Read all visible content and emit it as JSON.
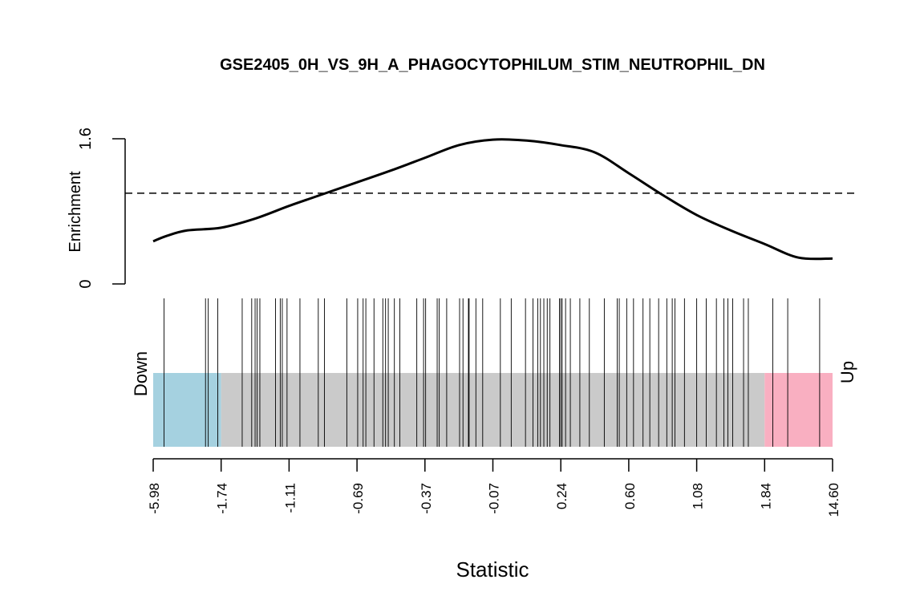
{
  "chart_data": {
    "type": "line",
    "title": "GSE2405_0H_VS_9H_A_PHAGOCYTOPHILUM_STIM_NEUTROPHIL_DN",
    "xlabel": "Statistic",
    "ylabel": "Enrichment",
    "ylim": [
      0,
      1.6
    ],
    "y_ticks": [
      "0",
      "1.6"
    ],
    "reference_line": {
      "y": 1.0,
      "style": "dashed"
    },
    "x_tick_labels": [
      "-5.98",
      "-1.74",
      "-1.11",
      "-0.69",
      "-0.37",
      "-0.07",
      "0.24",
      "0.60",
      "1.08",
      "1.84",
      "14.60"
    ],
    "enrichment_curve": {
      "x_fraction": [
        0,
        0.02,
        0.05,
        0.1,
        0.15,
        0.2,
        0.25,
        0.3,
        0.35,
        0.4,
        0.45,
        0.5,
        0.55,
        0.6,
        0.65,
        0.7,
        0.75,
        0.8,
        0.85,
        0.9,
        0.95,
        1.0
      ],
      "y": [
        0.47,
        0.53,
        0.59,
        0.62,
        0.72,
        0.86,
        0.99,
        1.12,
        1.25,
        1.39,
        1.53,
        1.59,
        1.58,
        1.53,
        1.45,
        1.22,
        0.98,
        0.76,
        0.59,
        0.44,
        0.29,
        0.28
      ]
    },
    "barcode": {
      "down_label": "Down",
      "up_label": "Up",
      "down_region": [
        0,
        0.1
      ],
      "up_region": [
        0.9,
        1.0
      ],
      "down_color": "#a5d1e0",
      "middle_color": "#cacaca",
      "up_color": "#f9afc1",
      "gene_positions": [
        0.016,
        0.077,
        0.081,
        0.095,
        0.131,
        0.145,
        0.15,
        0.153,
        0.157,
        0.18,
        0.187,
        0.19,
        0.197,
        0.216,
        0.243,
        0.252,
        0.285,
        0.301,
        0.309,
        0.313,
        0.325,
        0.338,
        0.342,
        0.346,
        0.355,
        0.363,
        0.388,
        0.398,
        0.401,
        0.418,
        0.421,
        0.432,
        0.456,
        0.451,
        0.464,
        0.465,
        0.475,
        0.485,
        0.511,
        0.527,
        0.548,
        0.559,
        0.566,
        0.57,
        0.575,
        0.58,
        0.584,
        0.598,
        0.6,
        0.602,
        0.607,
        0.614,
        0.628,
        0.642,
        0.664,
        0.683,
        0.686,
        0.697,
        0.707,
        0.721,
        0.731,
        0.744,
        0.756,
        0.764,
        0.768,
        0.782,
        0.8,
        0.814,
        0.829,
        0.84,
        0.846,
        0.853,
        0.869,
        0.876,
        0.912,
        0.934,
        0.981
      ]
    }
  }
}
